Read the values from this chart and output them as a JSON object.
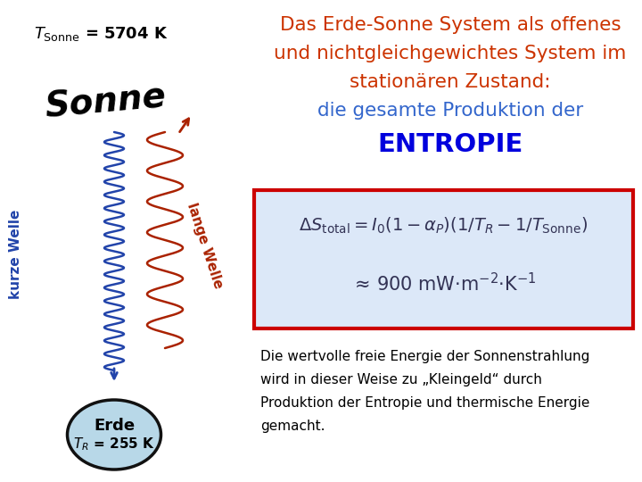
{
  "title_line1": "Das Erde-Sonne System als offenes",
  "title_line2": "und nichtgleichgewichtes System im",
  "title_line3": "stationären Zustand:",
  "title_line4": "die gesamte Produktion der",
  "title_line5": "ENTROPIE",
  "title_color": "#cc3300",
  "title_line4_color": "#3366cc",
  "title_line5_color": "#0000dd",
  "tsonne_label": "T",
  "tsonne_sub": "Sonne",
  "tsonne_val": " = 5704 K",
  "sonne_text": "Sonne",
  "kurze_welle": "kurze Welle",
  "lange_welle": "lange Welle",
  "erde_label": "Erde",
  "tr_label": "T",
  "tr_sub": "R",
  "tr_val": " = 255 K",
  "formula_box_bg": "#dce8f8",
  "formula_box_border": "#cc0000",
  "bottom_text_line1": "Die wertvolle freie Energie der Sonnenstrahlung",
  "bottom_text_line2": "wird in dieser Weise zu „Kleingeld“ durch",
  "bottom_text_line3": "Produktion der Entropie und thermische Energie",
  "bottom_text_line4": "gemacht.",
  "wave_blue": "#2244aa",
  "wave_red": "#aa2200",
  "erde_fill": "#b8d8e8",
  "erde_border": "#111111",
  "background": "#ffffff"
}
